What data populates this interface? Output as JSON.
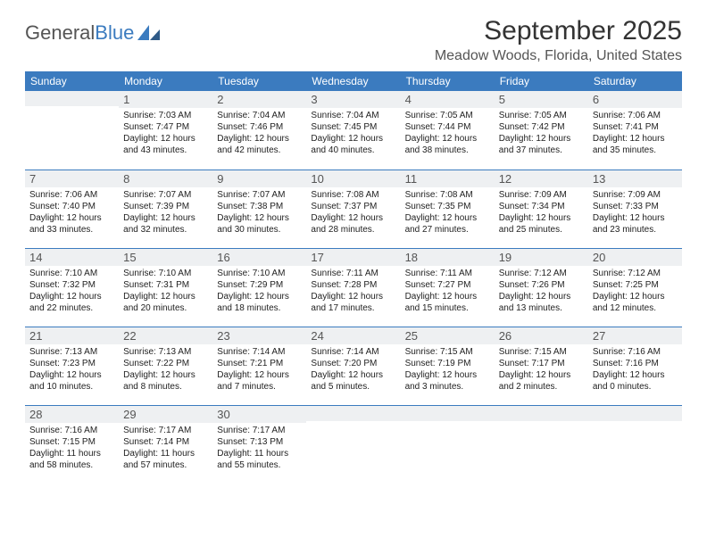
{
  "brand": {
    "word1": "General",
    "word2": "Blue"
  },
  "title": "September 2025",
  "location": "Meadow Woods, Florida, United States",
  "header_bg": "#3b7bbf",
  "day_headers": [
    "Sunday",
    "Monday",
    "Tuesday",
    "Wednesday",
    "Thursday",
    "Friday",
    "Saturday"
  ],
  "weeks": [
    [
      {
        "n": "",
        "sr": "",
        "ss": "",
        "dl": ""
      },
      {
        "n": "1",
        "sr": "7:03 AM",
        "ss": "7:47 PM",
        "dl": "12 hours and 43 minutes."
      },
      {
        "n": "2",
        "sr": "7:04 AM",
        "ss": "7:46 PM",
        "dl": "12 hours and 42 minutes."
      },
      {
        "n": "3",
        "sr": "7:04 AM",
        "ss": "7:45 PM",
        "dl": "12 hours and 40 minutes."
      },
      {
        "n": "4",
        "sr": "7:05 AM",
        "ss": "7:44 PM",
        "dl": "12 hours and 38 minutes."
      },
      {
        "n": "5",
        "sr": "7:05 AM",
        "ss": "7:42 PM",
        "dl": "12 hours and 37 minutes."
      },
      {
        "n": "6",
        "sr": "7:06 AM",
        "ss": "7:41 PM",
        "dl": "12 hours and 35 minutes."
      }
    ],
    [
      {
        "n": "7",
        "sr": "7:06 AM",
        "ss": "7:40 PM",
        "dl": "12 hours and 33 minutes."
      },
      {
        "n": "8",
        "sr": "7:07 AM",
        "ss": "7:39 PM",
        "dl": "12 hours and 32 minutes."
      },
      {
        "n": "9",
        "sr": "7:07 AM",
        "ss": "7:38 PM",
        "dl": "12 hours and 30 minutes."
      },
      {
        "n": "10",
        "sr": "7:08 AM",
        "ss": "7:37 PM",
        "dl": "12 hours and 28 minutes."
      },
      {
        "n": "11",
        "sr": "7:08 AM",
        "ss": "7:35 PM",
        "dl": "12 hours and 27 minutes."
      },
      {
        "n": "12",
        "sr": "7:09 AM",
        "ss": "7:34 PM",
        "dl": "12 hours and 25 minutes."
      },
      {
        "n": "13",
        "sr": "7:09 AM",
        "ss": "7:33 PM",
        "dl": "12 hours and 23 minutes."
      }
    ],
    [
      {
        "n": "14",
        "sr": "7:10 AM",
        "ss": "7:32 PM",
        "dl": "12 hours and 22 minutes."
      },
      {
        "n": "15",
        "sr": "7:10 AM",
        "ss": "7:31 PM",
        "dl": "12 hours and 20 minutes."
      },
      {
        "n": "16",
        "sr": "7:10 AM",
        "ss": "7:29 PM",
        "dl": "12 hours and 18 minutes."
      },
      {
        "n": "17",
        "sr": "7:11 AM",
        "ss": "7:28 PM",
        "dl": "12 hours and 17 minutes."
      },
      {
        "n": "18",
        "sr": "7:11 AM",
        "ss": "7:27 PM",
        "dl": "12 hours and 15 minutes."
      },
      {
        "n": "19",
        "sr": "7:12 AM",
        "ss": "7:26 PM",
        "dl": "12 hours and 13 minutes."
      },
      {
        "n": "20",
        "sr": "7:12 AM",
        "ss": "7:25 PM",
        "dl": "12 hours and 12 minutes."
      }
    ],
    [
      {
        "n": "21",
        "sr": "7:13 AM",
        "ss": "7:23 PM",
        "dl": "12 hours and 10 minutes."
      },
      {
        "n": "22",
        "sr": "7:13 AM",
        "ss": "7:22 PM",
        "dl": "12 hours and 8 minutes."
      },
      {
        "n": "23",
        "sr": "7:14 AM",
        "ss": "7:21 PM",
        "dl": "12 hours and 7 minutes."
      },
      {
        "n": "24",
        "sr": "7:14 AM",
        "ss": "7:20 PM",
        "dl": "12 hours and 5 minutes."
      },
      {
        "n": "25",
        "sr": "7:15 AM",
        "ss": "7:19 PM",
        "dl": "12 hours and 3 minutes."
      },
      {
        "n": "26",
        "sr": "7:15 AM",
        "ss": "7:17 PM",
        "dl": "12 hours and 2 minutes."
      },
      {
        "n": "27",
        "sr": "7:16 AM",
        "ss": "7:16 PM",
        "dl": "12 hours and 0 minutes."
      }
    ],
    [
      {
        "n": "28",
        "sr": "7:16 AM",
        "ss": "7:15 PM",
        "dl": "11 hours and 58 minutes."
      },
      {
        "n": "29",
        "sr": "7:17 AM",
        "ss": "7:14 PM",
        "dl": "11 hours and 57 minutes."
      },
      {
        "n": "30",
        "sr": "7:17 AM",
        "ss": "7:13 PM",
        "dl": "11 hours and 55 minutes."
      },
      {
        "n": "",
        "sr": "",
        "ss": "",
        "dl": ""
      },
      {
        "n": "",
        "sr": "",
        "ss": "",
        "dl": ""
      },
      {
        "n": "",
        "sr": "",
        "ss": "",
        "dl": ""
      },
      {
        "n": "",
        "sr": "",
        "ss": "",
        "dl": ""
      }
    ]
  ],
  "labels": {
    "sunrise": "Sunrise:",
    "sunset": "Sunset:",
    "daylight": "Daylight:"
  }
}
